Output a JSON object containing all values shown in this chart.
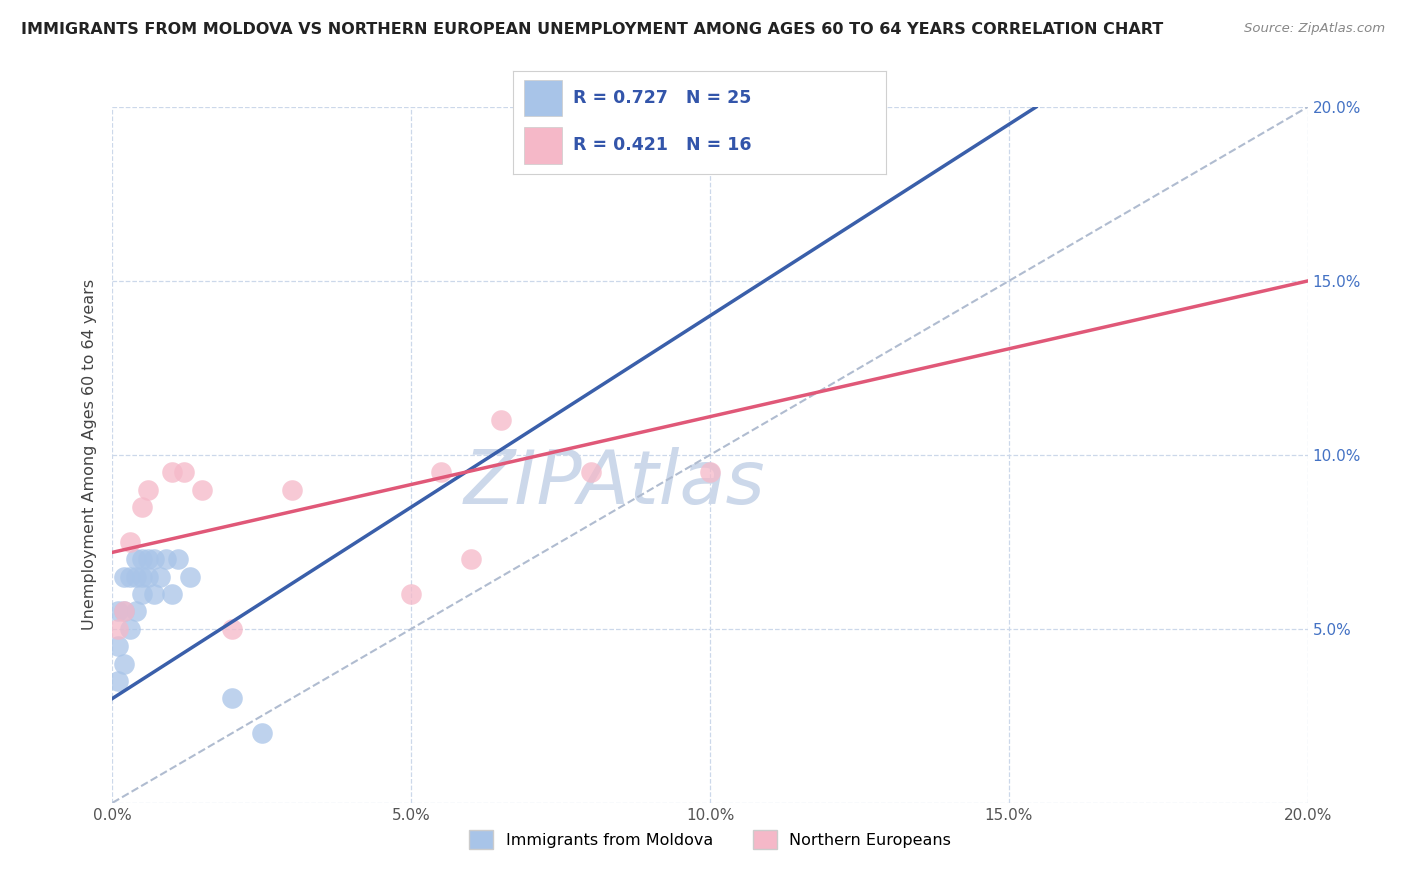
{
  "title": "IMMIGRANTS FROM MOLDOVA VS NORTHERN EUROPEAN UNEMPLOYMENT AMONG AGES 60 TO 64 YEARS CORRELATION CHART",
  "source": "Source: ZipAtlas.com",
  "ylabel_label": "Unemployment Among Ages 60 to 64 years",
  "xlim": [
    0.0,
    0.2
  ],
  "ylim": [
    0.0,
    0.2
  ],
  "xticks": [
    0.0,
    0.05,
    0.1,
    0.15,
    0.2
  ],
  "yticks": [
    0.0,
    0.05,
    0.1,
    0.15,
    0.2
  ],
  "blue_R": 0.727,
  "blue_N": 25,
  "pink_R": 0.421,
  "pink_N": 16,
  "blue_color": "#a8c4e8",
  "pink_color": "#f5b8c8",
  "blue_line_color": "#3a5faa",
  "pink_line_color": "#e05878",
  "trend_line_color": "#b0bcd0",
  "legend_label_blue": "Immigrants from Moldova",
  "legend_label_pink": "Northern Europeans",
  "blue_scatter_x": [
    0.001,
    0.001,
    0.001,
    0.002,
    0.002,
    0.002,
    0.003,
    0.003,
    0.004,
    0.004,
    0.004,
    0.005,
    0.005,
    0.005,
    0.006,
    0.006,
    0.007,
    0.007,
    0.008,
    0.009,
    0.01,
    0.011,
    0.013,
    0.02,
    0.025
  ],
  "blue_scatter_y": [
    0.035,
    0.045,
    0.055,
    0.04,
    0.055,
    0.065,
    0.05,
    0.065,
    0.055,
    0.065,
    0.07,
    0.06,
    0.065,
    0.07,
    0.065,
    0.07,
    0.06,
    0.07,
    0.065,
    0.07,
    0.06,
    0.07,
    0.065,
    0.03,
    0.02
  ],
  "pink_scatter_x": [
    0.001,
    0.002,
    0.003,
    0.005,
    0.006,
    0.01,
    0.012,
    0.015,
    0.02,
    0.03,
    0.05,
    0.055,
    0.06,
    0.065,
    0.08,
    0.1
  ],
  "pink_scatter_y": [
    0.05,
    0.055,
    0.075,
    0.085,
    0.09,
    0.095,
    0.095,
    0.09,
    0.05,
    0.09,
    0.06,
    0.095,
    0.07,
    0.11,
    0.095,
    0.095
  ],
  "blue_line_x0": 0.0,
  "blue_line_y0": 0.03,
  "blue_line_x1": 0.08,
  "blue_line_y1": 0.118,
  "pink_line_x0": 0.0,
  "pink_line_y0": 0.072,
  "pink_line_x1": 0.2,
  "pink_line_y1": 0.15,
  "watermark": "ZIPAtlas",
  "watermark_color": "#ccd8ea",
  "background_color": "#ffffff",
  "grid_color": "#ccd8ea"
}
